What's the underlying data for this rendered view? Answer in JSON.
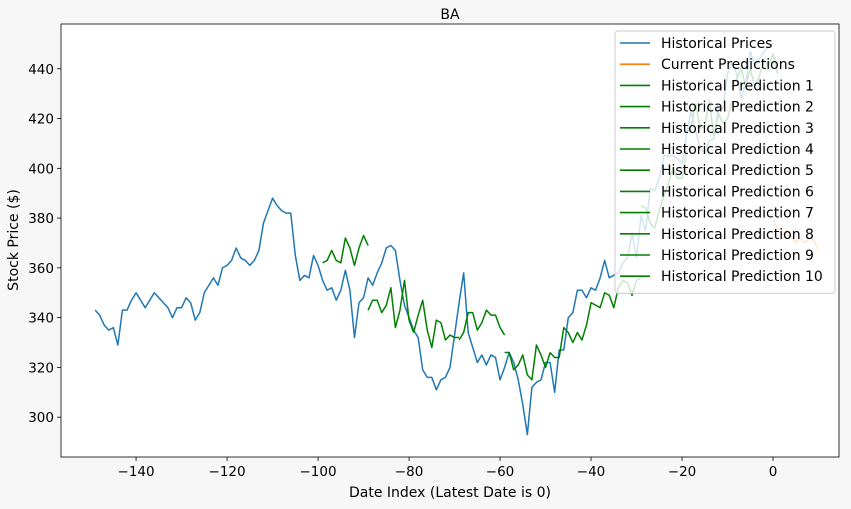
{
  "chart_data": {
    "type": "line",
    "title": "BA",
    "xlabel": "Date Index (Latest Date is 0)",
    "ylabel": "Stock Price ($)",
    "xlim": [
      -156.5,
      14.5
    ],
    "ylim": [
      284,
      458
    ],
    "xticks": [
      -140,
      -120,
      -100,
      -80,
      -60,
      -40,
      -20,
      0
    ],
    "xtick_labels": [
      "−140",
      "−120",
      "−100",
      "−80",
      "−60",
      "−40",
      "−20",
      "0"
    ],
    "yticks": [
      300,
      320,
      340,
      360,
      380,
      400,
      420,
      440
    ],
    "ytick_labels": [
      "300",
      "320",
      "340",
      "360",
      "380",
      "400",
      "420",
      "440"
    ],
    "grid": false,
    "legend_position": "top-right",
    "series": [
      {
        "name": "Historical Prices",
        "color": "#1f77b4",
        "x": [
          -149,
          -148,
          -147,
          -146,
          -145,
          -144,
          -143,
          -142,
          -141,
          -140,
          -139,
          -138,
          -137,
          -136,
          -135,
          -134,
          -133,
          -132,
          -131,
          -130,
          -129,
          -128,
          -127,
          -126,
          -125,
          -124,
          -123,
          -122,
          -121,
          -120,
          -119,
          -118,
          -117,
          -116,
          -115,
          -114,
          -113,
          -112,
          -111,
          -110,
          -109,
          -108,
          -107,
          -106,
          -105,
          -104,
          -103,
          -102,
          -101,
          -100,
          -99,
          -98,
          -97,
          -96,
          -95,
          -94,
          -93,
          -92,
          -91,
          -90,
          -89,
          -88,
          -87,
          -86,
          -85,
          -84,
          -83,
          -82,
          -81,
          -80,
          -79,
          -78,
          -77,
          -76,
          -75,
          -74,
          -73,
          -72,
          -71,
          -70,
          -69,
          -68,
          -67,
          -66,
          -65,
          -64,
          -63,
          -62,
          -61,
          -60,
          -59,
          -58,
          -57,
          -56,
          -55,
          -54,
          -53,
          -52,
          -51,
          -50,
          -49,
          -48,
          -47,
          -46,
          -45,
          -44,
          -43,
          -42,
          -41,
          -40,
          -39,
          -38,
          -37,
          -36,
          -35,
          -34,
          -33,
          -32,
          -31,
          -30,
          -29,
          -28,
          -27,
          -26,
          -25,
          -24,
          -23,
          -22,
          -21,
          -20,
          -19,
          -18,
          -17,
          -16,
          -15,
          -14,
          -13,
          -12,
          -11,
          -10,
          -9,
          -8,
          -7,
          -6,
          -5,
          -4,
          -3,
          -2,
          -1,
          0
        ],
        "values": [
          343,
          341,
          337,
          335,
          336,
          329,
          343,
          343,
          347,
          350,
          347,
          344,
          347,
          350,
          348,
          346,
          344,
          340,
          344,
          344,
          348,
          346,
          339,
          342,
          350,
          353,
          356,
          353,
          360,
          361,
          363,
          368,
          364,
          363,
          361,
          363,
          367,
          378,
          383,
          388,
          385,
          383,
          382,
          382,
          365,
          355,
          357,
          356,
          365,
          361,
          355,
          351,
          352,
          347,
          351,
          359,
          351,
          332,
          346,
          348,
          356,
          353,
          358,
          362,
          368,
          369,
          367,
          355,
          345,
          340,
          335,
          332,
          319,
          316,
          316,
          311,
          315,
          316,
          320,
          333,
          346,
          358,
          334,
          328,
          322,
          325,
          321,
          325,
          324,
          315,
          320,
          326,
          322,
          315,
          305,
          293,
          312,
          314,
          315,
          322,
          322,
          310,
          327,
          327,
          340,
          342,
          351,
          351,
          348,
          352,
          351,
          356,
          363,
          356,
          357,
          358,
          362,
          364,
          374,
          364,
          381,
          375,
          392,
          391,
          396,
          405,
          405,
          405,
          404,
          402,
          414,
          423,
          415,
          408,
          406,
          411,
          412,
          424,
          424,
          438,
          443,
          438,
          428,
          434,
          447,
          441,
          444,
          447,
          449,
          450
        ]
      },
      {
        "name": "Current Predictions",
        "color": "#ff7f0e",
        "x": [
          0,
          1,
          2,
          3,
          4,
          5,
          6,
          7,
          8,
          9,
          10
        ],
        "values": [
          379,
          376,
          373,
          375,
          373,
          370,
          372,
          370,
          372,
          371,
          367
        ]
      },
      {
        "name": "Historical Prediction 1",
        "color": "#008000",
        "x": [
          -99,
          -98,
          -97,
          -96,
          -95,
          -94,
          -93,
          -92,
          -91,
          -90,
          -89
        ],
        "values": [
          362,
          363,
          367,
          363,
          362,
          372,
          368,
          361,
          368,
          373,
          369
        ]
      },
      {
        "name": "Historical Prediction 2",
        "color": "#008000",
        "x": [
          -89,
          -88,
          -87,
          -86,
          -85,
          -84,
          -83,
          -82,
          -81,
          -80,
          -79
        ],
        "values": [
          343,
          347,
          347,
          342,
          345,
          352,
          336,
          343,
          355,
          339,
          334
        ]
      },
      {
        "name": "Historical Prediction 3",
        "color": "#008000",
        "x": [
          -79,
          -78,
          -77,
          -76,
          -75,
          -74,
          -73,
          -72,
          -71,
          -70,
          -69
        ],
        "values": [
          334,
          341,
          347,
          335,
          328,
          339,
          338,
          331,
          333,
          332,
          332
        ]
      },
      {
        "name": "Historical Prediction 4",
        "color": "#008000",
        "x": [
          -69,
          -68,
          -67,
          -66,
          -65,
          -64,
          -63,
          -62,
          -61,
          -60,
          -59
        ],
        "values": [
          331,
          334,
          342,
          342,
          335,
          338,
          343,
          341,
          341,
          336,
          333
        ]
      },
      {
        "name": "Historical Prediction 5",
        "color": "#008000",
        "x": [
          -59,
          -58,
          -57,
          -56,
          -55,
          -54,
          -53,
          -52,
          -51,
          -50,
          -49
        ],
        "values": [
          326,
          326,
          319,
          321,
          325,
          317,
          315,
          329,
          325,
          320,
          326
        ]
      },
      {
        "name": "Historical Prediction 6",
        "color": "#008000",
        "x": [
          -49,
          -48,
          -47,
          -46,
          -45,
          -44,
          -43,
          -42,
          -41,
          -40,
          -39
        ],
        "values": [
          326,
          324,
          324,
          336,
          334,
          330,
          334,
          331,
          337,
          346,
          345
        ]
      },
      {
        "name": "Historical Prediction 7",
        "color": "#008000",
        "x": [
          -39,
          -38,
          -37,
          -36,
          -35,
          -34,
          -33,
          -32,
          -31,
          -30,
          -29
        ],
        "values": [
          345,
          344,
          350,
          349,
          344,
          352,
          355,
          354,
          349,
          355,
          356
        ]
      },
      {
        "name": "Historical Prediction 8",
        "color": "#008000",
        "x": [
          -29,
          -28,
          -27,
          -26,
          -25,
          -24,
          -23,
          -22,
          -21,
          -20,
          -19
        ],
        "values": [
          385,
          384,
          378,
          376,
          383,
          389,
          394,
          400,
          396,
          396,
          407
        ]
      },
      {
        "name": "Historical Prediction 9",
        "color": "#008000",
        "x": [
          -19,
          -18,
          -17,
          -16,
          -15,
          -14,
          -13,
          -12,
          -11,
          -10,
          -9
        ],
        "values": [
          414,
          417,
          426,
          416,
          417,
          427,
          413,
          422,
          418,
          420,
          427
        ]
      },
      {
        "name": "Historical Prediction 10",
        "color": "#008000",
        "x": [
          -9,
          -8,
          -7,
          -6,
          -5,
          -4,
          -3,
          -2,
          -1,
          0,
          1
        ],
        "values": [
          433,
          436,
          440,
          433,
          440,
          433,
          437,
          444,
          441,
          446,
          438
        ]
      }
    ]
  }
}
